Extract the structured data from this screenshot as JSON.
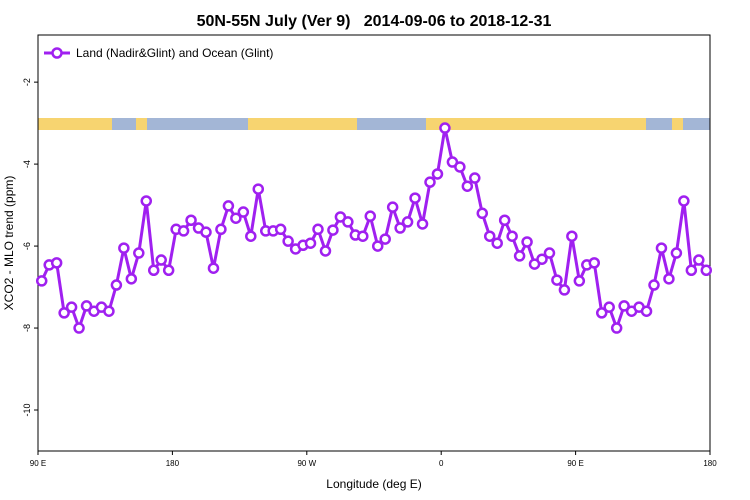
{
  "chart_data": {
    "type": "line",
    "title": "50N-55N July (Ver 9)   2014-09-06 to 2018-12-31",
    "xlabel": "Longitude (deg E)",
    "ylabel": "XCO2 - MLO trend (ppm)",
    "legend": "upper left",
    "xlim": [
      90,
      540
    ],
    "xticks": [
      {
        "value": 90,
        "label": "90 E"
      },
      180,
      {
        "value": 270,
        "label": "90 W"
      },
      {
        "value": 360,
        "label": "0"
      },
      {
        "value": 450,
        "label": "90 E"
      },
      {
        "value": 540,
        "label": "180"
      }
    ],
    "ylim": [
      -11,
      -0.85
    ],
    "yticks": [
      -10,
      -8,
      -6,
      -4,
      -2
    ],
    "x": [
      92.5,
      97.5,
      102.5,
      107.5,
      112.5,
      117.5,
      122.5,
      127.5,
      132.5,
      137.5,
      142.5,
      147.5,
      152.5,
      157.5,
      162.5,
      167.5,
      172.5,
      177.5,
      182.5,
      187.5,
      192.5,
      197.5,
      202.5,
      207.5,
      212.5,
      217.5,
      222.5,
      227.5,
      232.5,
      237.5,
      242.5,
      247.5,
      252.5,
      257.5,
      262.5,
      267.5,
      272.5,
      277.5,
      282.5,
      287.5,
      292.5,
      297.5,
      302.5,
      307.5,
      312.5,
      317.5,
      322.5,
      327.5,
      332.5,
      337.5,
      342.5,
      347.5,
      352.5,
      357.5,
      362.5,
      367.5,
      372.5,
      377.5,
      382.5,
      387.5,
      392.5,
      397.5,
      402.5,
      407.5,
      412.5,
      417.5,
      422.5,
      427.5,
      432.5,
      437.5,
      442.5,
      447.5,
      452.5,
      457.5,
      462.5,
      467.5,
      472.5,
      477.5,
      482.5,
      487.5,
      492.5,
      497.5,
      502.5,
      507.5,
      512.5,
      517.5,
      522.5,
      527.5,
      532.5,
      537.5
    ],
    "series": [
      {
        "name": "Land (Nadir&Glint) and Ocean (Glint)",
        "color": "#a020f0",
        "values": [
          -6.85,
          -6.46,
          -6.41,
          -7.63,
          -7.49,
          -8.0,
          -7.46,
          -7.59,
          -7.49,
          -7.59,
          -6.95,
          -6.05,
          -6.8,
          -6.17,
          -4.9,
          -6.59,
          -6.34,
          -6.59,
          -5.59,
          -5.63,
          -5.37,
          -5.56,
          -5.66,
          -6.54,
          -5.59,
          -5.02,
          -5.32,
          -5.17,
          -5.76,
          -4.61,
          -5.63,
          -5.63,
          -5.59,
          -5.88,
          -6.07,
          -5.98,
          -5.93,
          -5.59,
          -6.12,
          -5.61,
          -5.29,
          -5.41,
          -5.73,
          -5.76,
          -5.27,
          -6.0,
          -5.83,
          -5.05,
          -5.56,
          -5.41,
          -4.83,
          -5.46,
          -4.44,
          -4.24,
          -3.12,
          -3.95,
          -4.07,
          -4.54,
          -4.34,
          -5.2,
          -5.76,
          -5.93,
          -5.37,
          -5.76,
          -6.24,
          -5.9,
          -6.44,
          -6.32,
          -6.17,
          -6.83,
          -7.07,
          -5.76,
          -6.85,
          -6.46,
          -6.41,
          -7.63,
          -7.49,
          -8.0,
          -7.46,
          -7.59,
          -7.49,
          -7.59,
          -6.95,
          -6.05,
          -6.8,
          -6.17,
          -4.9,
          -6.59,
          -6.34,
          -6.59
        ]
      }
    ]
  }
}
